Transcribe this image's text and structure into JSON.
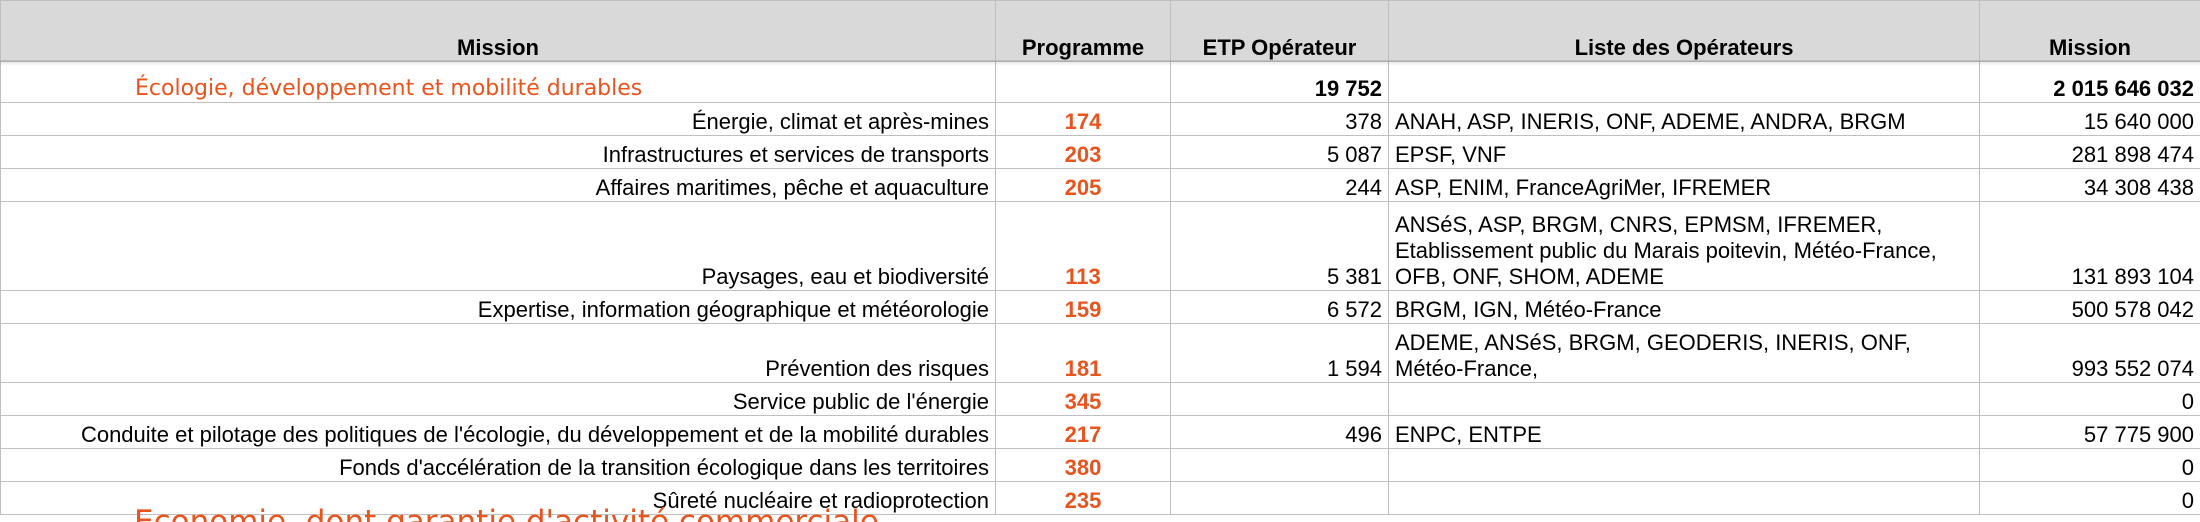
{
  "header": {
    "mission": "Mission",
    "programme": "Programme",
    "etp": "ETP Opérateur",
    "liste": "Liste des Opérateurs",
    "mission2": "Mission"
  },
  "section": {
    "title": "Écologie, développement et mobilité durables",
    "etp_total": "19 752",
    "amount_total": "2 015 646 032"
  },
  "rows": [
    {
      "label": "Énergie, climat et après-mines",
      "prog": "174",
      "etp": "378",
      "ops": "ANAH, ASP, INERIS, ONF, ADEME, ANDRA, BRGM",
      "amount": "15 640 000"
    },
    {
      "label": "Infrastructures et services de transports",
      "prog": "203",
      "etp": "5 087",
      "ops": "EPSF, VNF",
      "amount": "281 898 474"
    },
    {
      "label": "Affaires maritimes, pêche et aquaculture",
      "prog": "205",
      "etp": "244",
      "ops": "ASP, ENIM, FranceAgriMer, IFREMER",
      "amount": "34 308 438"
    },
    {
      "label": "Paysages, eau et biodiversité",
      "prog": "113",
      "etp": "5 381",
      "ops": "ANSéS, ASP, BRGM, CNRS, EPMSM, IFREMER,\nEtablissement public du Marais poitevin, Météo-France,\nOFB, ONF, SHOM, ADEME",
      "amount": "131 893 104"
    },
    {
      "label": "Expertise, information géographique et météorologie",
      "prog": "159",
      "etp": "6 572",
      "ops": "BRGM, IGN, Météo-France",
      "amount": "500 578 042"
    },
    {
      "label": "Prévention des risques",
      "prog": "181",
      "etp": "1 594",
      "ops": "ADEME, ANSéS, BRGM, GEODERIS, INERIS, ONF,\nMétéo-France,",
      "amount": "993 552 074"
    },
    {
      "label": "Service public de l'énergie",
      "prog": "345",
      "etp": "",
      "ops": "",
      "amount": "0"
    },
    {
      "label": "Conduite et pilotage des politiques de l'écologie, du développement et de la mobilité durables",
      "prog": "217",
      "etp": "496",
      "ops": "ENPC, ENTPE",
      "amount": "57 775 900"
    },
    {
      "label": "Fonds d'accélération de la transition écologique dans les territoires",
      "prog": "380",
      "etp": "",
      "ops": "",
      "amount": "0"
    },
    {
      "label": "Sûreté nucléaire et radioprotection",
      "prog": "235",
      "etp": "",
      "ops": "",
      "amount": "0"
    }
  ],
  "next_section": {
    "title": "Economie, dont garantie d'activité commerciale"
  }
}
